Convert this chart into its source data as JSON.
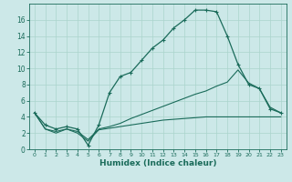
{
  "xlabel": "Humidex (Indice chaleur)",
  "bg_color": "#cce8e8",
  "line_color": "#1a6b5a",
  "xlim": [
    -0.5,
    23.5
  ],
  "ylim": [
    0,
    18
  ],
  "xticks": [
    0,
    1,
    2,
    3,
    4,
    5,
    6,
    7,
    8,
    9,
    10,
    11,
    12,
    13,
    14,
    15,
    16,
    17,
    18,
    19,
    20,
    21,
    22,
    23
  ],
  "yticks": [
    0,
    2,
    4,
    6,
    8,
    10,
    12,
    14,
    16
  ],
  "grid_color": "#aad4cc",
  "series1_x": [
    0,
    1,
    2,
    3,
    4,
    5,
    6,
    7,
    8,
    9,
    10,
    11,
    12,
    13,
    14,
    15,
    16,
    17,
    18,
    19,
    20,
    21,
    22,
    23
  ],
  "series1_y": [
    4.5,
    3.0,
    2.5,
    2.8,
    2.5,
    0.5,
    3.0,
    7.0,
    9.0,
    9.5,
    11.0,
    12.5,
    13.5,
    15.0,
    16.0,
    17.2,
    17.2,
    17.0,
    14.0,
    10.5,
    8.0,
    7.5,
    5.0,
    4.5
  ],
  "series2_x": [
    0,
    1,
    2,
    3,
    4,
    5,
    6,
    7,
    8,
    9,
    10,
    11,
    12,
    13,
    14,
    15,
    16,
    17,
    18,
    19,
    20,
    21,
    22,
    23
  ],
  "series2_y": [
    4.5,
    2.5,
    2.2,
    2.5,
    2.2,
    1.2,
    2.5,
    2.8,
    3.2,
    3.8,
    4.3,
    4.8,
    5.3,
    5.8,
    6.3,
    6.8,
    7.2,
    7.8,
    8.3,
    9.8,
    8.2,
    7.5,
    5.2,
    4.5
  ],
  "series3_x": [
    0,
    1,
    2,
    3,
    4,
    5,
    6,
    7,
    8,
    9,
    10,
    11,
    12,
    13,
    14,
    15,
    16,
    17,
    18,
    19,
    20,
    21,
    22,
    23
  ],
  "series3_y": [
    4.5,
    2.5,
    2.0,
    2.5,
    2.0,
    1.0,
    2.4,
    2.6,
    2.8,
    3.0,
    3.2,
    3.4,
    3.6,
    3.7,
    3.8,
    3.9,
    4.0,
    4.0,
    4.0,
    4.0,
    4.0,
    4.0,
    4.0,
    4.0
  ]
}
